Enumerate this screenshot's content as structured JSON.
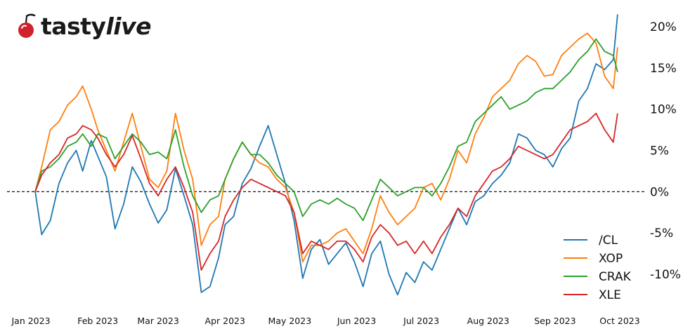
{
  "brand": {
    "name_part1": "tasty",
    "name_part2": "live"
  },
  "chart_data": {
    "type": "line",
    "title": "",
    "xlabel": "",
    "ylabel": "",
    "y_unit": "percent change",
    "ylim": [
      -13.5,
      22
    ],
    "xlim": [
      0,
      280
    ],
    "grid": false,
    "legend_position": "bottom-right",
    "reference_line": {
      "y": 0,
      "style": "dashed",
      "color": "#000000"
    },
    "y_ticks": [
      {
        "value": 20,
        "label": "20%"
      },
      {
        "value": 15,
        "label": "15%"
      },
      {
        "value": 10,
        "label": "10%"
      },
      {
        "value": 5,
        "label": "5%"
      },
      {
        "value": 0,
        "label": "0%"
      },
      {
        "value": -5,
        "label": "-5%"
      },
      {
        "value": -10,
        "label": "-10%"
      }
    ],
    "x_ticks": [
      {
        "day": 0,
        "label": "Jan 2023"
      },
      {
        "day": 31,
        "label": "Feb 2023"
      },
      {
        "day": 59,
        "label": "Mar 2023"
      },
      {
        "day": 90,
        "label": "Apr 2023"
      },
      {
        "day": 120,
        "label": "May 2023"
      },
      {
        "day": 151,
        "label": "Jun 2023"
      },
      {
        "day": 181,
        "label": "Jul 2023"
      },
      {
        "day": 212,
        "label": "Aug 2023"
      },
      {
        "day": 243,
        "label": "Sep 2023"
      },
      {
        "day": 273,
        "label": "Oct 2023"
      }
    ],
    "x": [
      2,
      5,
      9,
      13,
      17,
      21,
      24,
      28,
      31,
      35,
      39,
      43,
      47,
      51,
      55,
      59,
      63,
      67,
      71,
      75,
      79,
      83,
      87,
      90,
      94,
      98,
      102,
      106,
      110,
      114,
      118,
      122,
      126,
      130,
      134,
      138,
      142,
      146,
      150,
      154,
      158,
      162,
      166,
      170,
      174,
      178,
      182,
      186,
      190,
      194,
      198,
      202,
      206,
      210,
      214,
      218,
      222,
      226,
      230,
      234,
      238,
      242,
      246,
      250,
      254,
      258,
      262,
      266,
      270,
      272
    ],
    "series": [
      {
        "name": "/CL",
        "color": "#1f77b4",
        "values": [
          0.0,
          -5.2,
          -3.5,
          1.0,
          3.5,
          5.0,
          2.5,
          6.2,
          4.3,
          1.8,
          -4.5,
          -1.5,
          3.0,
          1.2,
          -1.5,
          -3.8,
          -2.2,
          2.8,
          -0.5,
          -4.0,
          -12.2,
          -11.5,
          -8.0,
          -4.0,
          -3.0,
          1.0,
          2.8,
          5.5,
          8.0,
          4.5,
          1.0,
          -3.5,
          -10.5,
          -7.0,
          -5.8,
          -8.8,
          -7.5,
          -6.2,
          -8.5,
          -11.5,
          -7.5,
          -6.0,
          -10.0,
          -12.5,
          -9.8,
          -11.0,
          -8.5,
          -9.5,
          -7.0,
          -4.5,
          -2.0,
          -4.0,
          -1.2,
          -0.5,
          1.0,
          2.0,
          3.5,
          7.0,
          6.5,
          5.0,
          4.5,
          3.0,
          5.2,
          6.5,
          11.0,
          12.5,
          15.5,
          14.8,
          16.0,
          21.5
        ]
      },
      {
        "name": "XOP",
        "color": "#ff7f0e",
        "values": [
          0.0,
          3.0,
          7.5,
          8.5,
          10.5,
          11.5,
          12.8,
          10.0,
          7.5,
          5.0,
          2.5,
          6.0,
          9.5,
          5.5,
          1.5,
          0.5,
          2.5,
          9.5,
          5.0,
          1.5,
          -6.5,
          -4.0,
          -3.0,
          1.5,
          4.0,
          6.0,
          4.5,
          3.5,
          3.0,
          1.5,
          0.5,
          -2.5,
          -8.5,
          -6.5,
          -6.5,
          -6.0,
          -5.0,
          -4.5,
          -6.0,
          -7.5,
          -4.5,
          -0.5,
          -2.5,
          -4.0,
          -3.0,
          -2.0,
          0.5,
          1.0,
          -1.0,
          1.5,
          5.0,
          3.5,
          7.0,
          9.0,
          11.5,
          12.5,
          13.5,
          15.5,
          16.5,
          15.8,
          14.0,
          14.2,
          16.5,
          17.5,
          18.5,
          19.2,
          18.0,
          14.0,
          12.5,
          17.5
        ]
      },
      {
        "name": "CRAK",
        "color": "#2ca02c",
        "values": [
          0.0,
          2.5,
          3.0,
          4.0,
          5.5,
          6.0,
          7.0,
          5.5,
          7.0,
          6.5,
          4.0,
          5.5,
          7.0,
          6.0,
          4.5,
          4.8,
          4.0,
          7.5,
          3.0,
          -0.5,
          -2.5,
          -1.0,
          -0.5,
          1.5,
          4.0,
          6.0,
          4.5,
          4.5,
          3.5,
          2.0,
          1.0,
          0.0,
          -3.0,
          -1.5,
          -1.0,
          -1.5,
          -0.8,
          -1.5,
          -2.0,
          -3.5,
          -1.0,
          1.5,
          0.5,
          -0.5,
          0.0,
          0.5,
          0.5,
          -0.5,
          1.0,
          3.0,
          5.5,
          6.0,
          8.5,
          9.5,
          10.5,
          11.5,
          10.0,
          10.5,
          11.0,
          12.0,
          12.5,
          12.5,
          13.5,
          14.5,
          16.0,
          17.0,
          18.5,
          17.0,
          16.5,
          14.5
        ]
      },
      {
        "name": "XLE",
        "color": "#d62728",
        "values": [
          0.0,
          2.0,
          3.5,
          4.5,
          6.5,
          7.0,
          8.0,
          7.5,
          6.5,
          4.5,
          3.0,
          4.5,
          6.8,
          4.0,
          1.0,
          -0.5,
          1.5,
          3.0,
          0.5,
          -2.5,
          -9.5,
          -7.5,
          -6.0,
          -3.0,
          -1.0,
          0.5,
          1.5,
          1.0,
          0.5,
          0.0,
          -0.5,
          -2.5,
          -7.5,
          -6.0,
          -6.5,
          -7.0,
          -6.0,
          -6.0,
          -7.0,
          -8.5,
          -5.5,
          -4.0,
          -5.0,
          -6.5,
          -6.0,
          -7.5,
          -6.0,
          -7.5,
          -5.5,
          -4.0,
          -2.0,
          -3.0,
          -0.5,
          1.0,
          2.5,
          3.0,
          4.0,
          5.5,
          5.0,
          4.5,
          4.0,
          4.5,
          6.0,
          7.5,
          8.0,
          8.5,
          9.5,
          7.5,
          6.0,
          9.5
        ]
      }
    ]
  }
}
